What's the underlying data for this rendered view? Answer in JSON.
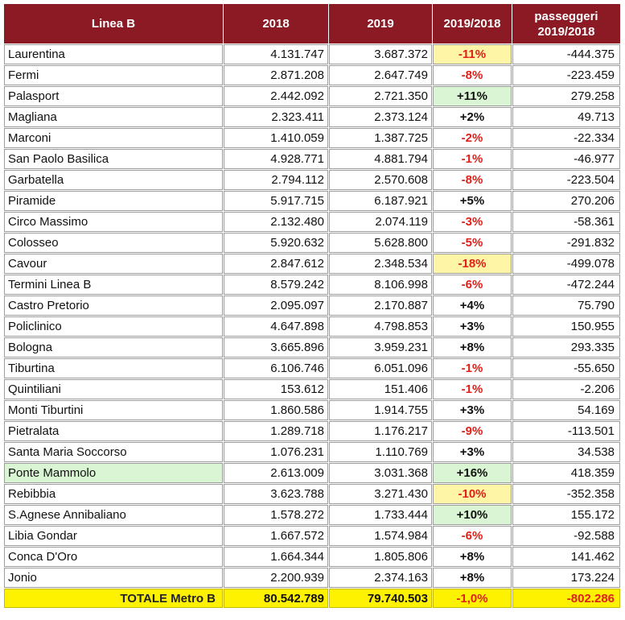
{
  "header": {
    "col_line": "Linea B",
    "col_2018": "2018",
    "col_2019": "2019",
    "col_ratio": "2019/2018",
    "col_diff_line1": "passeggeri",
    "col_diff_line2": "2019/2018"
  },
  "rows": [
    {
      "station": "Laurentina",
      "y2018": "4.131.747",
      "y2019": "3.687.372",
      "pct": "-11%",
      "diff": "-444.375"
    },
    {
      "station": "Fermi",
      "y2018": "2.871.208",
      "y2019": "2.647.749",
      "pct": "-8%",
      "diff": "-223.459"
    },
    {
      "station": "Palasport",
      "y2018": "2.442.092",
      "y2019": "2.721.350",
      "pct": "+11%",
      "diff": "279.258"
    },
    {
      "station": "Magliana",
      "y2018": "2.323.411",
      "y2019": "2.373.124",
      "pct": "+2%",
      "diff": "49.713"
    },
    {
      "station": "Marconi",
      "y2018": "1.410.059",
      "y2019": "1.387.725",
      "pct": "-2%",
      "diff": "-22.334"
    },
    {
      "station": "San Paolo Basilica",
      "y2018": "4.928.771",
      "y2019": "4.881.794",
      "pct": "-1%",
      "diff": "-46.977"
    },
    {
      "station": "Garbatella",
      "y2018": "2.794.112",
      "y2019": "2.570.608",
      "pct": "-8%",
      "diff": "-223.504"
    },
    {
      "station": "Piramide",
      "y2018": "5.917.715",
      "y2019": "6.187.921",
      "pct": "+5%",
      "diff": "270.206"
    },
    {
      "station": "Circo Massimo",
      "y2018": "2.132.480",
      "y2019": "2.074.119",
      "pct": "-3%",
      "diff": "-58.361"
    },
    {
      "station": "Colosseo",
      "y2018": "5.920.632",
      "y2019": "5.628.800",
      "pct": "-5%",
      "diff": "-291.832"
    },
    {
      "station": "Cavour",
      "y2018": "2.847.612",
      "y2019": "2.348.534",
      "pct": "-18%",
      "diff": "-499.078"
    },
    {
      "station": "Termini Linea B",
      "y2018": "8.579.242",
      "y2019": "8.106.998",
      "pct": "-6%",
      "diff": "-472.244"
    },
    {
      "station": "Castro Pretorio",
      "y2018": "2.095.097",
      "y2019": "2.170.887",
      "pct": "+4%",
      "diff": "75.790"
    },
    {
      "station": "Policlinico",
      "y2018": "4.647.898",
      "y2019": "4.798.853",
      "pct": "+3%",
      "diff": "150.955"
    },
    {
      "station": "Bologna",
      "y2018": "3.665.896",
      "y2019": "3.959.231",
      "pct": "+8%",
      "diff": "293.335"
    },
    {
      "station": "Tiburtina",
      "y2018": "6.106.746",
      "y2019": "6.051.096",
      "pct": "-1%",
      "diff": "-55.650"
    },
    {
      "station": "Quintiliani",
      "y2018": "153.612",
      "y2019": "151.406",
      "pct": "-1%",
      "diff": "-2.206"
    },
    {
      "station": "Monti Tiburtini",
      "y2018": "1.860.586",
      "y2019": "1.914.755",
      "pct": "+3%",
      "diff": "54.169"
    },
    {
      "station": "Pietralata",
      "y2018": "1.289.718",
      "y2019": "1.176.217",
      "pct": "-9%",
      "diff": "-113.501"
    },
    {
      "station": "Santa Maria Soccorso",
      "y2018": "1.076.231",
      "y2019": "1.110.769",
      "pct": "+3%",
      "diff": "34.538"
    },
    {
      "station": "Ponte Mammolo",
      "y2018": "2.613.009",
      "y2019": "3.031.368",
      "pct": "+16%",
      "diff": "418.359"
    },
    {
      "station": "Rebibbia",
      "y2018": "3.623.788",
      "y2019": "3.271.430",
      "pct": "-10%",
      "diff": "-352.358"
    },
    {
      "station": "S.Agnese Annibaliano",
      "y2018": "1.578.272",
      "y2019": "1.733.444",
      "pct": "+10%",
      "diff": "155.172"
    },
    {
      "station": "Libia Gondar",
      "y2018": "1.667.572",
      "y2019": "1.574.984",
      "pct": "-6%",
      "diff": "-92.588"
    },
    {
      "station": "Conca D'Oro",
      "y2018": "1.664.344",
      "y2019": "1.805.806",
      "pct": "+8%",
      "diff": "141.462"
    },
    {
      "station": "Jonio",
      "y2018": "2.200.939",
      "y2019": "2.374.163",
      "pct": "+8%",
      "diff": "173.224"
    }
  ],
  "total": {
    "label": "TOTALE Metro B",
    "y2018": "80.542.789",
    "y2019": "79.740.503",
    "pct": "-1,0%",
    "diff": "-802.286"
  },
  "colors": {
    "header_bg": "#8b1a24",
    "negative_text": "#e0201a",
    "highlight_yellow": "#fff5a6",
    "highlight_green": "#d9f5d4",
    "total_bg": "#fff200"
  }
}
